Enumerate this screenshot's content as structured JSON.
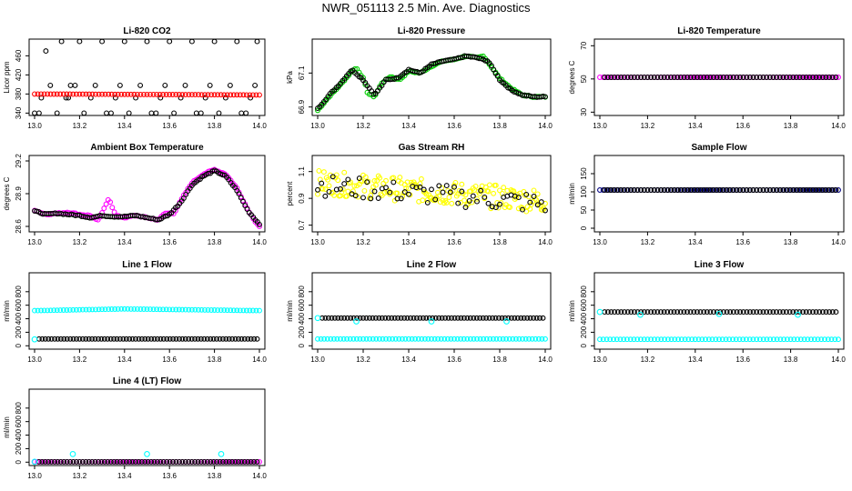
{
  "page": {
    "title": "NWR_051113  2.5 Min. Ave. Diagnostics"
  },
  "colors": {
    "black": "#000000",
    "red": "#ff0000",
    "green": "#00cc00",
    "yellow": "#ffff00",
    "magenta": "#ff00ff",
    "cyan": "#00ffff",
    "navy": "#000080"
  },
  "chart_data": [
    {
      "id": "co2",
      "type": "scatter",
      "title": "Li-820 CO2",
      "ylabel": "Licor ppm",
      "xlim": [
        13.0,
        14.0
      ],
      "ylim": [
        335,
        495
      ],
      "xticks": [
        "13.0",
        "13.2",
        "13.4",
        "13.6",
        "13.8",
        "14.0"
      ],
      "yticks": [
        340,
        380,
        420,
        460
      ],
      "series": [
        {
          "color": "black",
          "points": [
            [
              13.0,
              340
            ],
            [
              13.02,
              340
            ],
            [
              13.03,
              372
            ],
            [
              13.05,
              470
            ],
            [
              13.07,
              398
            ],
            [
              13.1,
              340
            ],
            [
              13.12,
              490
            ],
            [
              13.14,
              372
            ],
            [
              13.15,
              372
            ],
            [
              13.16,
              398
            ],
            [
              13.18,
              398
            ],
            [
              13.2,
              490
            ],
            [
              13.22,
              340
            ],
            [
              13.25,
              372
            ],
            [
              13.27,
              398
            ],
            [
              13.3,
              490
            ],
            [
              13.32,
              340
            ],
            [
              13.34,
              340
            ],
            [
              13.36,
              372
            ],
            [
              13.38,
              398
            ],
            [
              13.4,
              490
            ],
            [
              13.42,
              340
            ],
            [
              13.45,
              372
            ],
            [
              13.47,
              398
            ],
            [
              13.5,
              490
            ],
            [
              13.52,
              340
            ],
            [
              13.54,
              340
            ],
            [
              13.56,
              372
            ],
            [
              13.58,
              398
            ],
            [
              13.6,
              490
            ],
            [
              13.62,
              340
            ],
            [
              13.65,
              372
            ],
            [
              13.67,
              398
            ],
            [
              13.7,
              490
            ],
            [
              13.72,
              340
            ],
            [
              13.74,
              340
            ],
            [
              13.76,
              372
            ],
            [
              13.78,
              398
            ],
            [
              13.8,
              490
            ],
            [
              13.82,
              340
            ],
            [
              13.85,
              372
            ],
            [
              13.87,
              398
            ],
            [
              13.9,
              490
            ],
            [
              13.92,
              340
            ],
            [
              13.94,
              340
            ],
            [
              13.96,
              372
            ],
            [
              13.98,
              398
            ],
            [
              13.99,
              490
            ]
          ]
        },
        {
          "color": "red",
          "line": [
            [
              13.0,
              380
            ],
            [
              14.0,
              378
            ]
          ]
        }
      ]
    },
    {
      "id": "pressure",
      "type": "scatter",
      "title": "Li-820 Pressure",
      "ylabel": "kPa",
      "xlim": [
        13.0,
        14.0
      ],
      "ylim": [
        66.85,
        67.3
      ],
      "xticks": [
        "13.0",
        "13.2",
        "13.4",
        "13.6",
        "13.8",
        "14.0"
      ],
      "yticks": [
        66.9,
        67.1
      ],
      "series": [
        {
          "color": "green",
          "curve": [
            [
              13.0,
              66.88
            ],
            [
              13.05,
              66.96
            ],
            [
              13.1,
              67.03
            ],
            [
              13.15,
              67.11
            ],
            [
              13.17,
              67.13
            ],
            [
              13.2,
              67.07
            ],
            [
              13.22,
              66.98
            ],
            [
              13.25,
              66.96
            ],
            [
              13.28,
              67.04
            ],
            [
              13.32,
              67.08
            ],
            [
              13.36,
              67.06
            ],
            [
              13.4,
              67.11
            ],
            [
              13.45,
              67.1
            ],
            [
              13.5,
              67.14
            ],
            [
              13.55,
              67.17
            ],
            [
              13.6,
              67.18
            ],
            [
              13.65,
              67.2
            ],
            [
              13.7,
              67.19
            ],
            [
              13.73,
              67.2
            ],
            [
              13.75,
              67.16
            ],
            [
              13.8,
              67.07
            ],
            [
              13.85,
              67.01
            ],
            [
              13.9,
              66.97
            ],
            [
              13.95,
              66.96
            ],
            [
              14.0,
              66.96
            ]
          ]
        },
        {
          "color": "black",
          "curve": [
            [
              13.0,
              66.89
            ],
            [
              13.05,
              66.97
            ],
            [
              13.1,
              67.04
            ],
            [
              13.15,
              67.12
            ],
            [
              13.2,
              67.06
            ],
            [
              13.25,
              66.97
            ],
            [
              13.3,
              67.06
            ],
            [
              13.35,
              67.07
            ],
            [
              13.4,
              67.12
            ],
            [
              13.45,
              67.1
            ],
            [
              13.5,
              67.15
            ],
            [
              13.55,
              67.17
            ],
            [
              13.6,
              67.18
            ],
            [
              13.65,
              67.2
            ],
            [
              13.7,
              67.19
            ],
            [
              13.75,
              67.17
            ],
            [
              13.8,
              67.06
            ],
            [
              13.85,
              67.0
            ],
            [
              13.9,
              66.97
            ],
            [
              13.95,
              66.96
            ],
            [
              14.0,
              66.96
            ]
          ]
        }
      ]
    },
    {
      "id": "temp",
      "type": "scatter",
      "title": "Li-820 Temperature",
      "ylabel": "degrees C",
      "xlim": [
        13.0,
        14.0
      ],
      "ylim": [
        28,
        74
      ],
      "xticks": [
        "13.0",
        "13.2",
        "13.4",
        "13.6",
        "13.8",
        "14.0"
      ],
      "yticks": [
        30,
        50,
        70
      ],
      "series": [
        {
          "color": "magenta",
          "line": [
            [
              13.0,
              51
            ],
            [
              14.0,
              51
            ]
          ]
        },
        {
          "color": "black",
          "line": [
            [
              13.02,
              51
            ],
            [
              13.99,
              51
            ]
          ]
        }
      ]
    },
    {
      "id": "ambient",
      "type": "scatter",
      "title": "Ambient Box Temperature",
      "ylabel": "degrees C",
      "xlim": [
        13.0,
        14.0
      ],
      "ylim": [
        28.55,
        29.25
      ],
      "xticks": [
        "13.0",
        "13.2",
        "13.4",
        "13.6",
        "13.8",
        "14.0"
      ],
      "yticks": [
        28.6,
        28.9,
        29.2
      ],
      "series": [
        {
          "color": "magenta",
          "curve": [
            [
              13.0,
              28.75
            ],
            [
              13.05,
              28.71
            ],
            [
              13.1,
              28.72
            ],
            [
              13.15,
              28.73
            ],
            [
              13.2,
              28.71
            ],
            [
              13.25,
              28.7
            ],
            [
              13.28,
              28.65
            ],
            [
              13.3,
              28.72
            ],
            [
              13.33,
              28.86
            ],
            [
              13.36,
              28.7
            ],
            [
              13.4,
              28.68
            ],
            [
              13.45,
              28.7
            ],
            [
              13.5,
              28.68
            ],
            [
              13.55,
              28.66
            ],
            [
              13.58,
              28.72
            ],
            [
              13.62,
              28.72
            ],
            [
              13.66,
              28.87
            ],
            [
              13.7,
              29.0
            ],
            [
              13.75,
              29.08
            ],
            [
              13.8,
              29.12
            ],
            [
              13.85,
              29.08
            ],
            [
              13.9,
              28.95
            ],
            [
              13.95,
              28.75
            ],
            [
              13.98,
              28.65
            ],
            [
              14.0,
              28.6
            ]
          ]
        },
        {
          "color": "black",
          "curve": [
            [
              13.0,
              28.74
            ],
            [
              13.05,
              28.71
            ],
            [
              13.1,
              28.72
            ],
            [
              13.15,
              28.71
            ],
            [
              13.2,
              28.7
            ],
            [
              13.25,
              28.68
            ],
            [
              13.3,
              28.7
            ],
            [
              13.35,
              28.69
            ],
            [
              13.4,
              28.69
            ],
            [
              13.45,
              28.7
            ],
            [
              13.5,
              28.68
            ],
            [
              13.55,
              28.66
            ],
            [
              13.6,
              28.71
            ],
            [
              13.65,
              28.82
            ],
            [
              13.7,
              28.98
            ],
            [
              13.75,
              29.06
            ],
            [
              13.8,
              29.11
            ],
            [
              13.85,
              29.06
            ],
            [
              13.9,
              28.93
            ],
            [
              13.95,
              28.74
            ],
            [
              14.0,
              28.62
            ]
          ]
        }
      ]
    },
    {
      "id": "rh",
      "type": "scatter",
      "title": "Gas Stream RH",
      "ylabel": "percent",
      "xlim": [
        13.0,
        14.0
      ],
      "ylim": [
        0.65,
        1.22
      ],
      "xticks": [
        "13.0",
        "13.2",
        "13.4",
        "13.6",
        "13.8",
        "14.0"
      ],
      "yticks": [
        0.7,
        0.9,
        1.1
      ],
      "series": [
        {
          "color": "yellow",
          "noise": {
            "from": 1.02,
            "to": 0.88,
            "spread": 0.09
          }
        },
        {
          "color": "black",
          "noise": {
            "from": 1.0,
            "to": 0.86,
            "spread": 0.08
          }
        }
      ]
    },
    {
      "id": "sample",
      "type": "scatter",
      "title": "Sample Flow",
      "ylabel": "ml/min",
      "xlim": [
        13.0,
        14.0
      ],
      "ylim": [
        -10,
        200
      ],
      "xticks": [
        "13.0",
        "13.2",
        "13.4",
        "13.6",
        "13.8",
        "14.0"
      ],
      "yticks": [
        0,
        50,
        100,
        150
      ],
      "series": [
        {
          "color": "navy",
          "line": [
            [
              13.0,
              105
            ],
            [
              14.0,
              105
            ]
          ]
        },
        {
          "color": "black",
          "line": [
            [
              13.02,
              105
            ],
            [
              13.99,
              105
            ]
          ]
        }
      ]
    },
    {
      "id": "line1",
      "type": "scatter",
      "title": "Line 1 Flow",
      "ylabel": "ml/min",
      "xlim": [
        13.0,
        14.0
      ],
      "ylim": [
        -50,
        1080
      ],
      "xticks": [
        "13.0",
        "13.2",
        "13.4",
        "13.6",
        "13.8",
        "14.0"
      ],
      "yticks": [
        0,
        200,
        400,
        600,
        800
      ],
      "series": [
        {
          "color": "cyan",
          "line": [
            [
              13.0,
              520
            ],
            [
              13.4,
              545
            ],
            [
              14.0,
              520
            ]
          ]
        },
        {
          "color": "black",
          "line": [
            [
              13.02,
              100
            ],
            [
              13.99,
              100
            ]
          ]
        },
        {
          "color": "cyan",
          "dots": [
            [
              13.0,
              95
            ]
          ]
        }
      ]
    },
    {
      "id": "line2",
      "type": "scatter",
      "title": "Line 2 Flow",
      "ylabel": "ml/min",
      "xlim": [
        13.0,
        14.0
      ],
      "ylim": [
        -50,
        1080
      ],
      "xticks": [
        "13.0",
        "13.2",
        "13.4",
        "13.6",
        "13.8",
        "14.0"
      ],
      "yticks": [
        0,
        200,
        400,
        600,
        800
      ],
      "series": [
        {
          "color": "cyan",
          "line": [
            [
              13.0,
              100
            ],
            [
              14.0,
              100
            ]
          ]
        },
        {
          "color": "black",
          "line": [
            [
              13.02,
              410
            ],
            [
              13.99,
              410
            ]
          ]
        },
        {
          "color": "cyan",
          "dots": [
            [
              13.0,
              410
            ],
            [
              13.17,
              360
            ],
            [
              13.5,
              360
            ],
            [
              13.83,
              360
            ]
          ]
        }
      ]
    },
    {
      "id": "line3",
      "type": "scatter",
      "title": "Line 3 Flow",
      "ylabel": "ml/min",
      "xlim": [
        13.0,
        14.0
      ],
      "ylim": [
        -50,
        1080
      ],
      "xticks": [
        "13.0",
        "13.2",
        "13.4",
        "13.6",
        "13.8",
        "14.0"
      ],
      "yticks": [
        0,
        200,
        400,
        600,
        800
      ],
      "series": [
        {
          "color": "cyan",
          "line": [
            [
              13.0,
              95
            ],
            [
              14.0,
              95
            ]
          ]
        },
        {
          "color": "black",
          "line": [
            [
              13.02,
              500
            ],
            [
              13.99,
              500
            ]
          ]
        },
        {
          "color": "cyan",
          "dots": [
            [
              13.0,
              500
            ],
            [
              13.17,
              460
            ],
            [
              13.5,
              470
            ],
            [
              13.83,
              460
            ]
          ]
        }
      ]
    },
    {
      "id": "line4",
      "type": "scatter",
      "title": "Line 4 (LT) Flow",
      "ylabel": "ml/min",
      "xlim": [
        13.0,
        14.0
      ],
      "ylim": [
        -50,
        1080
      ],
      "xticks": [
        "13.0",
        "13.2",
        "13.4",
        "13.6",
        "13.8",
        "14.0"
      ],
      "yticks": [
        0,
        200,
        400,
        600,
        800
      ],
      "series": [
        {
          "color": "magenta",
          "line": [
            [
              13.0,
              5
            ],
            [
              14.0,
              5
            ]
          ]
        },
        {
          "color": "black",
          "line": [
            [
              13.02,
              5
            ],
            [
              13.99,
              5
            ]
          ]
        },
        {
          "color": "cyan",
          "dots": [
            [
              13.0,
              5
            ],
            [
              13.17,
              120
            ],
            [
              13.5,
              120
            ],
            [
              13.83,
              120
            ]
          ]
        }
      ]
    }
  ]
}
